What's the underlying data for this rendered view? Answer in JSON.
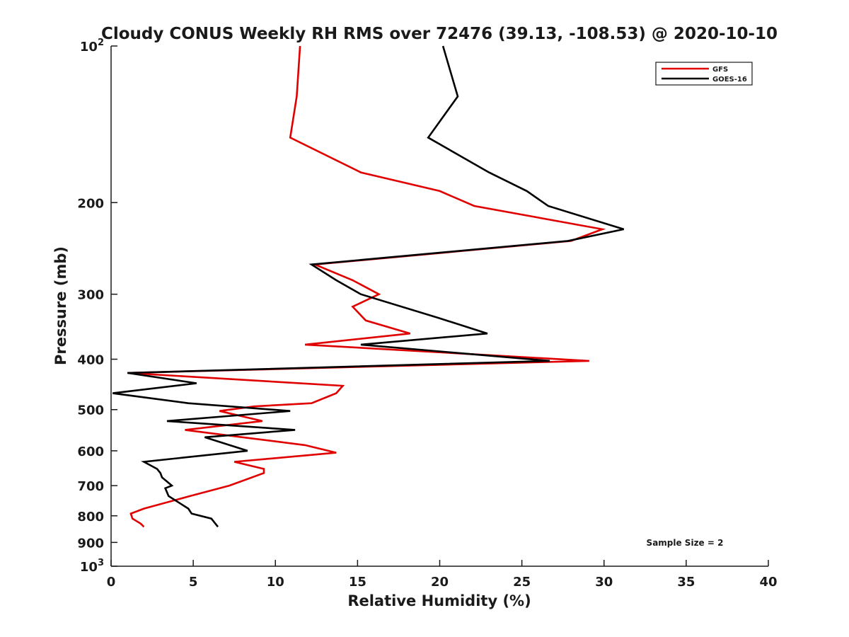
{
  "chart_data": {
    "type": "line",
    "title": "Cloudy CONUS Weekly RH RMS over 72476 (39.13, -108.53) @ 2020-10-10",
    "xlabel": "Relative Humidity (%)",
    "ylabel": "Pressure (mb)",
    "xlim": [
      0,
      40
    ],
    "ylim": [
      100,
      1000
    ],
    "y_scale": "log",
    "y_inverted": true,
    "grid": false,
    "legend_position": "top-right",
    "x_ticks": [
      0,
      5,
      10,
      15,
      20,
      25,
      30,
      35,
      40
    ],
    "x_tick_labels": [
      "0",
      "5",
      "10",
      "15",
      "20",
      "25",
      "30",
      "35",
      "40"
    ],
    "y_ticks": [
      100,
      200,
      300,
      400,
      500,
      600,
      700,
      800,
      900,
      1000
    ],
    "y_tick_labels": [
      {
        "base": "10",
        "exp": "2"
      },
      {
        "base": "200",
        "exp": ""
      },
      {
        "base": "300",
        "exp": ""
      },
      {
        "base": "400",
        "exp": ""
      },
      {
        "base": "500",
        "exp": ""
      },
      {
        "base": "600",
        "exp": ""
      },
      {
        "base": "700",
        "exp": ""
      },
      {
        "base": "800",
        "exp": ""
      },
      {
        "base": "900",
        "exp": ""
      },
      {
        "base": "10",
        "exp": "3"
      }
    ],
    "annotation": "Sample Size = 2",
    "series": [
      {
        "name": "GFS",
        "color": "#e00000",
        "points": [
          [
            11.5,
            100
          ],
          [
            11.3,
            125
          ],
          [
            10.9,
            150
          ],
          [
            15.2,
            175
          ],
          [
            20.0,
            190
          ],
          [
            22.1,
            203
          ],
          [
            29.9,
            225
          ],
          [
            28.0,
            237
          ],
          [
            12.4,
            263
          ],
          [
            14.7,
            282
          ],
          [
            16.3,
            300
          ],
          [
            14.7,
            317
          ],
          [
            15.5,
            337
          ],
          [
            18.2,
            357
          ],
          [
            11.8,
            375
          ],
          [
            29.1,
            403
          ],
          [
            1.0,
            425
          ],
          [
            14.1,
            450
          ],
          [
            13.7,
            465
          ],
          [
            12.2,
            486
          ],
          [
            8.7,
            493
          ],
          [
            6.6,
            503
          ],
          [
            9.2,
            526
          ],
          [
            4.5,
            547
          ],
          [
            8.0,
            565
          ],
          [
            11.8,
            585
          ],
          [
            13.7,
            605
          ],
          [
            7.5,
            630
          ],
          [
            9.3,
            650
          ],
          [
            9.3,
            662
          ],
          [
            7.2,
            700
          ],
          [
            4.8,
            733
          ],
          [
            2.0,
            775
          ],
          [
            1.2,
            792
          ],
          [
            1.3,
            810
          ],
          [
            1.8,
            828
          ],
          [
            2.0,
            840
          ]
        ]
      },
      {
        "name": "GOES-16",
        "color": "#000000",
        "points": [
          [
            20.2,
            100
          ],
          [
            21.1,
            125
          ],
          [
            19.3,
            150
          ],
          [
            23.0,
            175
          ],
          [
            25.3,
            190
          ],
          [
            26.6,
            203
          ],
          [
            31.2,
            225
          ],
          [
            27.8,
            237
          ],
          [
            12.2,
            263
          ],
          [
            13.7,
            282
          ],
          [
            15.2,
            300
          ],
          [
            19.9,
            333
          ],
          [
            22.9,
            357
          ],
          [
            15.2,
            375
          ],
          [
            26.7,
            403
          ],
          [
            1.0,
            425
          ],
          [
            5.2,
            445
          ],
          [
            0.1,
            465
          ],
          [
            4.7,
            486
          ],
          [
            10.9,
            503
          ],
          [
            3.4,
            526
          ],
          [
            11.2,
            547
          ],
          [
            5.7,
            565
          ],
          [
            8.3,
            600
          ],
          [
            2.0,
            630
          ],
          [
            2.8,
            650
          ],
          [
            3.0,
            662
          ],
          [
            3.1,
            675
          ],
          [
            3.7,
            700
          ],
          [
            3.3,
            708
          ],
          [
            3.5,
            733
          ],
          [
            4.7,
            775
          ],
          [
            4.9,
            792
          ],
          [
            6.1,
            810
          ],
          [
            6.5,
            840
          ]
        ]
      }
    ]
  }
}
